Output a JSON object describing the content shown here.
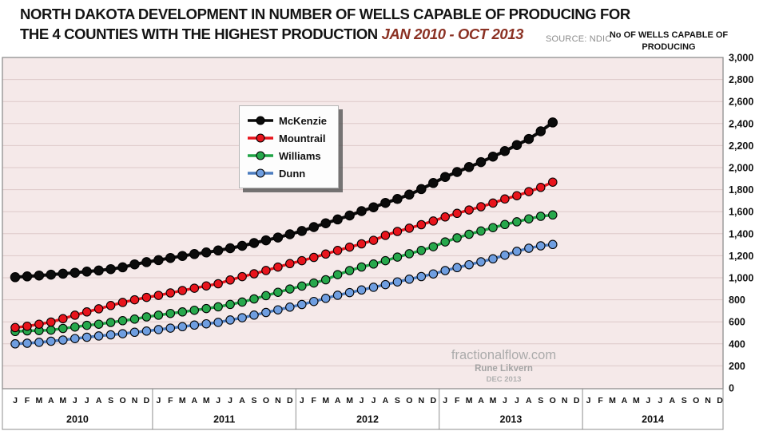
{
  "header": {
    "title_line1": "NORTH DAKOTA DEVELOPMENT IN NUMBER OF WELLS CAPABLE OF PRODUCING FOR",
    "title_line2_prefix": "THE 4 COUNTIES WITH THE HIGHEST PRODUCTION ",
    "title_date_range": "JAN 2010 - OCT 2013",
    "source_label": "SOURCE: NDIC",
    "y_axis_title": "No OF WELLS CAPABLE OF PRODUCING"
  },
  "watermark": {
    "site": "fractionalflow.com",
    "author": "Rune Likvern",
    "date": "DEC 2013"
  },
  "colors": {
    "plot_bg": "#f5e9e9",
    "grid": "#ddc9c9",
    "border": "#8f8f8f",
    "axis_text": "#111111",
    "title": "#141414",
    "date_range": "#8b3123",
    "source": "#8c8c8c",
    "watermark": "#ababab"
  },
  "chart_data": {
    "type": "line",
    "title": "North Dakota development in number of wells capable of producing for the 4 counties with the highest production, Jan 2010 - Oct 2013",
    "data_start": "Jan 2010",
    "data_end": "Oct 2013",
    "x_months": [
      "J",
      "F",
      "M",
      "A",
      "M",
      "J",
      "J",
      "A",
      "S",
      "O",
      "N",
      "D"
    ],
    "x_years": [
      "2010",
      "2011",
      "2012",
      "2013",
      "2014"
    ],
    "months_shown_on_axis": 60,
    "ylim": [
      0,
      3000
    ],
    "ytick_step": 200,
    "ytick_labels": [
      "0",
      "200",
      "400",
      "600",
      "800",
      "1,000",
      "1,200",
      "1,400",
      "1,600",
      "1,800",
      "2,000",
      "2,200",
      "2,400",
      "2,600",
      "2,800",
      "3,000"
    ],
    "grid": true,
    "legend_position": "upper-left-center",
    "series": [
      {
        "name": "McKenzie",
        "color": "#0b0b0b",
        "marker_fill": "#0b0b0b",
        "values": [
          1005,
          1012,
          1020,
          1028,
          1037,
          1046,
          1056,
          1066,
          1078,
          1095,
          1122,
          1142,
          1160,
          1180,
          1198,
          1215,
          1230,
          1248,
          1268,
          1290,
          1315,
          1340,
          1365,
          1395,
          1425,
          1460,
          1495,
          1530,
          1565,
          1605,
          1640,
          1680,
          1715,
          1755,
          1805,
          1860,
          1915,
          1960,
          2005,
          2050,
          2100,
          2150,
          2205,
          2260,
          2330,
          2410
        ]
      },
      {
        "name": "Mountrail",
        "color": "#e8141c",
        "marker_fill": "#e8141c",
        "values": [
          548,
          560,
          578,
          598,
          628,
          660,
          690,
          718,
          748,
          776,
          800,
          822,
          840,
          862,
          884,
          905,
          926,
          946,
          980,
          1010,
          1036,
          1066,
          1097,
          1128,
          1155,
          1185,
          1215,
          1248,
          1278,
          1308,
          1340,
          1385,
          1420,
          1450,
          1482,
          1515,
          1552,
          1585,
          1615,
          1645,
          1678,
          1715,
          1745,
          1782,
          1820,
          1868
        ]
      },
      {
        "name": "Williams",
        "color": "#1fa345",
        "marker_fill": "#27a84c",
        "values": [
          512,
          518,
          520,
          525,
          540,
          553,
          568,
          578,
          594,
          610,
          625,
          645,
          660,
          676,
          690,
          705,
          720,
          736,
          758,
          780,
          808,
          838,
          868,
          898,
          925,
          952,
          982,
          1028,
          1065,
          1098,
          1125,
          1155,
          1188,
          1218,
          1248,
          1282,
          1325,
          1362,
          1395,
          1425,
          1455,
          1483,
          1508,
          1535,
          1558,
          1570
        ]
      },
      {
        "name": "Dunn",
        "color": "#4c7cbf",
        "marker_fill": "#6f9ee0",
        "values": [
          400,
          406,
          414,
          424,
          435,
          448,
          460,
          472,
          482,
          492,
          505,
          516,
          530,
          543,
          556,
          570,
          582,
          595,
          617,
          637,
          661,
          685,
          709,
          733,
          757,
          785,
          813,
          841,
          865,
          889,
          914,
          938,
          962,
          987,
          1011,
          1035,
          1065,
          1092,
          1118,
          1145,
          1172,
          1205,
          1240,
          1268,
          1290,
          1302
        ]
      }
    ]
  }
}
